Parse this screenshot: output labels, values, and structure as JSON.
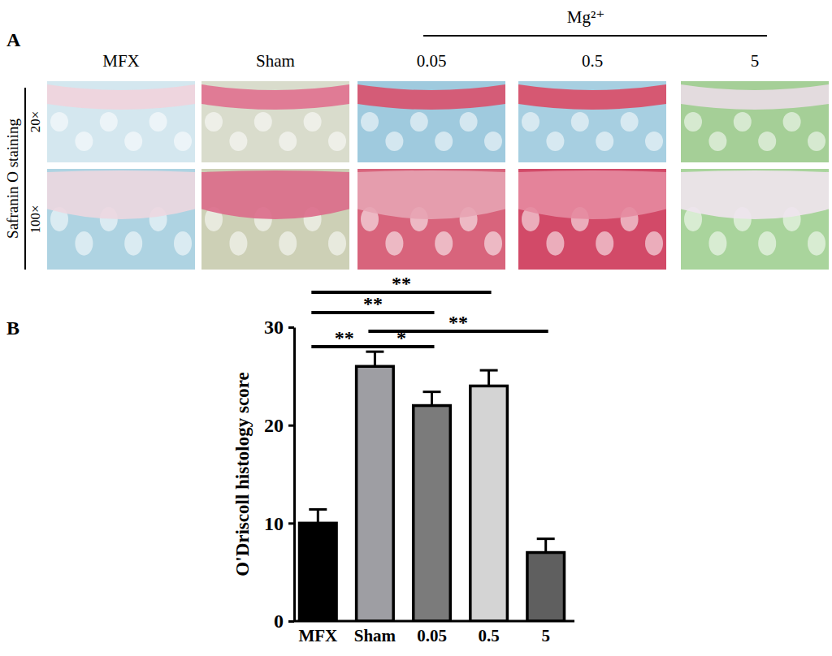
{
  "figure": {
    "panel_labels": [
      "A",
      "B"
    ],
    "panel_a": {
      "group_label": "Mg²⁺",
      "columns": [
        "MFX",
        "Sham",
        "0.05",
        "0.5",
        "5"
      ],
      "stain_label": "Safranin O staining",
      "magnifications": [
        "20×",
        "100×"
      ]
    }
  },
  "chart_data": {
    "type": "bar",
    "categories": [
      "MFX",
      "Sham",
      "0.05",
      "0.5",
      "5"
    ],
    "values": [
      10,
      26,
      22,
      24,
      7
    ],
    "errors": [
      1.4,
      1.5,
      1.4,
      1.6,
      1.4
    ],
    "colors": [
      "#000000",
      "#9e9ea3",
      "#7b7b7b",
      "#d4d4d4",
      "#5f5f5f"
    ],
    "y_label": "O'Driscoll histology score",
    "ylim": [
      0,
      30
    ],
    "yticks": [
      0,
      10,
      20,
      30
    ],
    "significance": [
      {
        "groups": [
          "MFX",
          "0.5"
        ],
        "label": "**"
      },
      {
        "groups": [
          "MFX",
          "0.05"
        ],
        "label": "**"
      },
      {
        "groups": [
          "Sham",
          "5"
        ],
        "label": "**"
      },
      {
        "groups": [
          "MFX",
          "Sham"
        ],
        "label": "**"
      },
      {
        "groups": [
          "Sham",
          "0.05"
        ],
        "label": "*"
      }
    ]
  }
}
